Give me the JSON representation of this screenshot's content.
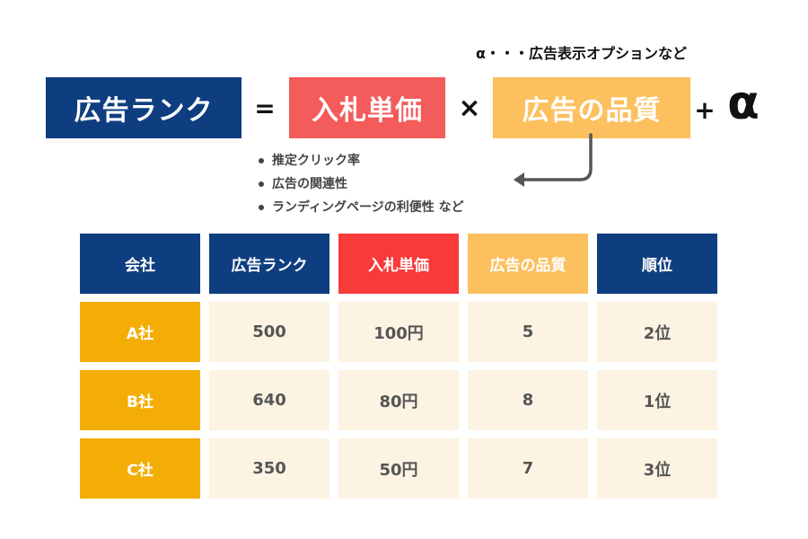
{
  "colors": {
    "navy": "#0f3e80",
    "red_light": "#f45b5b",
    "red": "#f83a3a",
    "orange": "#fcc05f",
    "amber": "#f4ad04",
    "cream": "#fdf3e3",
    "text_dark": "#111111",
    "text_gray": "#555555"
  },
  "formula": {
    "alpha_note": "α・・・広告表示オプションなど",
    "ad_rank": "広告ランク",
    "equals": "=",
    "max_cpc": "入札単価",
    "times": "×",
    "ad_quality": "広告の品質",
    "plus": "+",
    "alpha": "α"
  },
  "quality_factors": [
    "推定クリック率",
    "広告の関連性",
    "ランディングページの利便性 など"
  ],
  "icons": {
    "arrow": "curved-arrow-left-icon"
  },
  "table": {
    "headers": [
      "会社",
      "広告ランク",
      "入札単価",
      "広告の品質",
      "順位"
    ],
    "rows": [
      [
        "A社",
        "500",
        "100円",
        "5",
        "2位"
      ],
      [
        "B社",
        "640",
        "80円",
        "8",
        "1位"
      ],
      [
        "C社",
        "350",
        "50円",
        "7",
        "3位"
      ]
    ]
  }
}
